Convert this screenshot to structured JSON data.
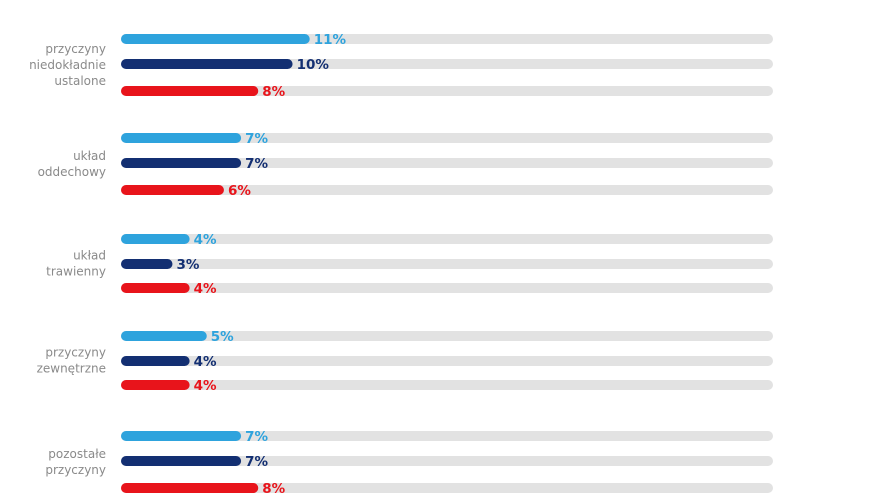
{
  "chart_data": {
    "type": "bar",
    "orientation": "horizontal",
    "value_suffix": "%",
    "track_max": 38,
    "categories": [
      [
        "przyczyny",
        "niedokładnie",
        "ustalone"
      ],
      [
        "układ",
        "oddechowy"
      ],
      [
        "układ",
        "trawienny"
      ],
      [
        "przyczyny",
        "zewnętrzne"
      ],
      [
        "pozostałe",
        "przyczyny"
      ]
    ],
    "series": [
      {
        "color": "#2ea3dd",
        "values": [
          11,
          7,
          4,
          5,
          7
        ]
      },
      {
        "color": "#132f72",
        "values": [
          10,
          7,
          3,
          4,
          7
        ]
      },
      {
        "color": "#e8141b",
        "values": [
          8,
          6,
          4,
          4,
          8
        ]
      }
    ],
    "track_color": "#e2e2e2",
    "category_label_color": "#8a8a8a",
    "title": "",
    "xlabel": "",
    "ylabel": "",
    "legend": "none",
    "grid": false
  }
}
